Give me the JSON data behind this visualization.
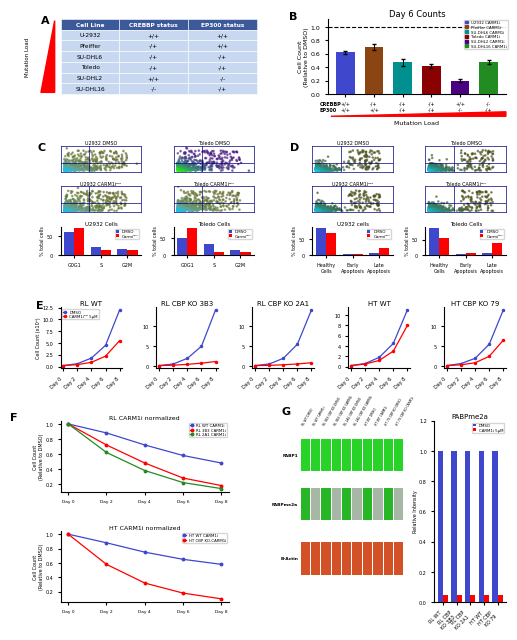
{
  "panel_A": {
    "table_header": [
      "Cell Line",
      "CREBBP status",
      "EP300 status"
    ],
    "rows": [
      [
        "U-2932",
        "+/+",
        "+/+"
      ],
      [
        "Pfeiffer",
        "-/+",
        "+/+"
      ],
      [
        "SU-DHL6",
        "-/+",
        "-/+"
      ],
      [
        "Toledo",
        "-/+",
        "-/+"
      ],
      [
        "SU-DHL2",
        "+/+",
        "-/-"
      ],
      [
        "SU-DHL16",
        "-/-",
        "-/+"
      ]
    ],
    "header_color": "#3C5A9A",
    "row_color": "#C8D8F0"
  },
  "panel_B": {
    "title": "Day 6 Counts",
    "ylabel": "Cell Count\n(Relative to DMSO)",
    "bars": [
      {
        "label": "U2932 CARM1i",
        "value": 0.62,
        "error": 0.025,
        "color": "#3F48CC"
      },
      {
        "label": "Pfeiffer CARM1i",
        "value": 0.7,
        "error": 0.04,
        "color": "#8B4513"
      },
      {
        "label": "SU-DHL6 CARM1i",
        "value": 0.47,
        "error": 0.05,
        "color": "#009090"
      },
      {
        "label": "Toledo CARM1i",
        "value": 0.42,
        "error": 0.03,
        "color": "#8B0000"
      },
      {
        "label": "SU-DHL2 CARM1i",
        "value": 0.2,
        "error": 0.02,
        "color": "#4B0082"
      },
      {
        "label": "SU-DHL16 CARM1i",
        "value": 0.48,
        "error": 0.03,
        "color": "#228B22"
      }
    ],
    "xticklabels_crebbp": [
      "+/+",
      "-/+",
      "-/+",
      "-/+",
      "+/+",
      "-/-"
    ],
    "xticklabels_ep300": [
      "+/+",
      "+/+",
      "-/+",
      "-/+",
      "-/-",
      "-/+"
    ]
  },
  "panel_C": {
    "bar_groups_u2932": {
      "categories": [
        "G0G1",
        "S",
        "G2M"
      ],
      "dmso": [
        62,
        20,
        17
      ],
      "carmi": [
        72,
        12,
        14
      ]
    },
    "bar_groups_toledo": {
      "categories": [
        "G0G1",
        "S",
        "G2M"
      ],
      "dmso": [
        52,
        33,
        14
      ],
      "carmi": [
        82,
        9,
        8
      ]
    },
    "dmso_color": "#3F48CC",
    "carmi_color": "#FF0000"
  },
  "panel_D": {
    "bar_groups_u2932": {
      "categories": [
        "Healthy\nCells",
        "Early\nApoptosis",
        "Late\nApoptosis"
      ],
      "dmso": [
        87,
        4,
        7
      ],
      "carmi": [
        72,
        4,
        22
      ]
    },
    "bar_groups_toledo": {
      "categories": [
        "Healthy\nCells",
        "Early\nApoptosis",
        "Late\nApoptosis"
      ],
      "dmso": [
        89,
        4,
        5
      ],
      "carmi": [
        55,
        5,
        38
      ]
    },
    "dmso_color": "#3F48CC",
    "carmi_color": "#FF0000"
  },
  "panel_E": {
    "subpanels": [
      {
        "title": "RL WT",
        "dmso": [
          0.2,
          0.6,
          1.8,
          4.5,
          12.0
        ],
        "carmi": [
          0.2,
          0.4,
          0.9,
          2.2,
          5.5
        ]
      },
      {
        "title": "RL CBP KO 3B3",
        "dmso": [
          0.2,
          0.6,
          2.0,
          5.0,
          14.0
        ],
        "carmi": [
          0.2,
          0.3,
          0.5,
          0.8,
          1.2
        ]
      },
      {
        "title": "RL CBP KO 2A1",
        "dmso": [
          0.2,
          0.6,
          2.0,
          5.5,
          14.0
        ],
        "carmi": [
          0.2,
          0.25,
          0.4,
          0.6,
          0.9
        ]
      },
      {
        "title": "HT WT",
        "dmso": [
          0.2,
          0.6,
          1.8,
          4.5,
          11.0
        ],
        "carmi": [
          0.2,
          0.5,
          1.2,
          3.0,
          8.0
        ]
      },
      {
        "title": "HT CBP KO 79",
        "dmso": [
          0.2,
          0.7,
          2.0,
          5.5,
          14.0
        ],
        "carmi": [
          0.2,
          0.4,
          0.9,
          2.5,
          6.5
        ]
      }
    ],
    "days": [
      0,
      2,
      4,
      6,
      8
    ],
    "dmso_color": "#3F48CC",
    "carmi_color": "#FF0000",
    "dmso_label": "DMSO",
    "carmi_label": "CARM1iᴰᴹ 5μM",
    "ylabel": "Cell Count (x10⁵)"
  },
  "panel_F": {
    "subpanels": [
      {
        "title": "RL CARM1i normalized",
        "days": [
          0,
          2,
          4,
          6,
          8
        ],
        "lines": [
          {
            "label": "RL WT CARM1i",
            "values": [
              1.0,
              0.88,
              0.72,
              0.58,
              0.48
            ],
            "color": "#3F48CC"
          },
          {
            "label": "RL 3B3 CARM1i",
            "values": [
              1.0,
              0.72,
              0.48,
              0.28,
              0.18
            ],
            "color": "#FF0000"
          },
          {
            "label": "RL 2A1 CARM1i",
            "values": [
              1.0,
              0.62,
              0.38,
              0.22,
              0.14
            ],
            "color": "#228B22"
          }
        ],
        "ylabel": "Cell Count\n(Relative to DMSO)"
      },
      {
        "title": "HT CARM1i normalized",
        "days": [
          0,
          2,
          4,
          6,
          8
        ],
        "lines": [
          {
            "label": "HT WT CARM1i",
            "values": [
              1.0,
              0.88,
              0.75,
              0.65,
              0.58
            ],
            "color": "#3F48CC"
          },
          {
            "label": "HT CBP KO-CARM1i",
            "values": [
              1.0,
              0.58,
              0.32,
              0.18,
              0.1
            ],
            "color": "#FF0000"
          }
        ],
        "ylabel": "Cell Count\n(Relative to DMSO)"
      }
    ]
  },
  "panel_G": {
    "bar_title": "PABPme2a",
    "dmso_color": "#3F48CC",
    "carmi_color": "#FF0000",
    "dmso_label": "DMSO",
    "carmi_label": "CARM1i 5μM",
    "categories": [
      "RL WT",
      "RL CBP\nKO 3B3",
      "RL CBP\nKO 2A1",
      "HT WT",
      "HT CBP\nKO 79"
    ],
    "dmso_values": [
      1.0,
      1.0,
      1.0,
      1.0,
      1.0
    ],
    "carmi_values": [
      0.05,
      0.05,
      0.05,
      0.05,
      0.05
    ],
    "western_labels": [
      "PABP1",
      "PABPme2a",
      "B-Actin"
    ],
    "lane_labels": [
      "RL WT DMSO",
      "RL WT CARM1i",
      "RL 3B3 CBP KO DMSO",
      "RL 3B3 CBP KO CARM1i",
      "RL 2A1 CBP KO DMSO",
      "RL 2A1 CBP KO CARM1i",
      "HT WT DMSO",
      "HT WT CARM1i",
      "HT 79 CBP KO DMSO",
      "HT 79 CBP KO CARM1i"
    ],
    "pabp1_color": "#00CC00",
    "pabpme2a_dmso_color": "#00AA00",
    "pabpme2a_carmi_color": "#003300",
    "bactin_color": "#CC3300"
  },
  "bg": "#FFFFFF"
}
